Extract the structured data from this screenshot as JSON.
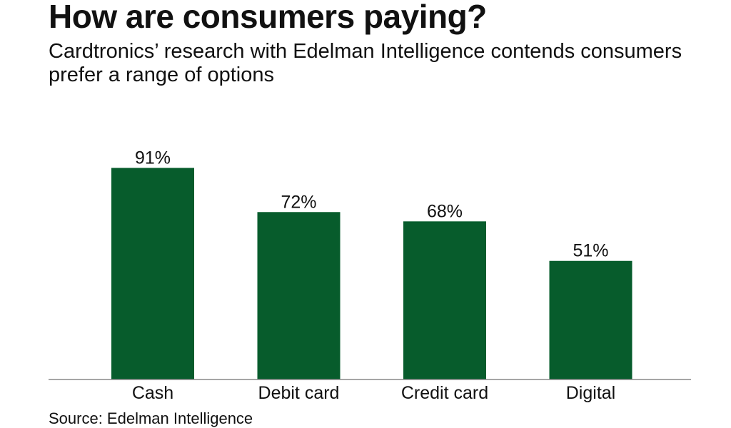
{
  "header": {
    "title": "How are consumers paying?",
    "subtitle": "Cardtronics’ research with Edelman Intelligence contends consumers prefer a range of options"
  },
  "footer": {
    "source": "Source: Edelman Intelligence"
  },
  "colors": {
    "bar": "#075c2c",
    "axis": "#888888",
    "text": "#111111"
  },
  "chart_data": {
    "type": "bar",
    "title": "How are consumers paying?",
    "subtitle": "Cardtronics’ research with Edelman Intelligence contends consumers prefer a range of options",
    "categories": [
      "Cash",
      "Debit card",
      "Credit card",
      "Digital"
    ],
    "values": [
      91,
      72,
      68,
      51
    ],
    "value_labels": [
      "91%",
      "72%",
      "68%",
      "51%"
    ],
    "xlabel": "",
    "ylabel": "",
    "ylim": [
      0,
      100
    ],
    "grid": false,
    "legend": "none"
  }
}
